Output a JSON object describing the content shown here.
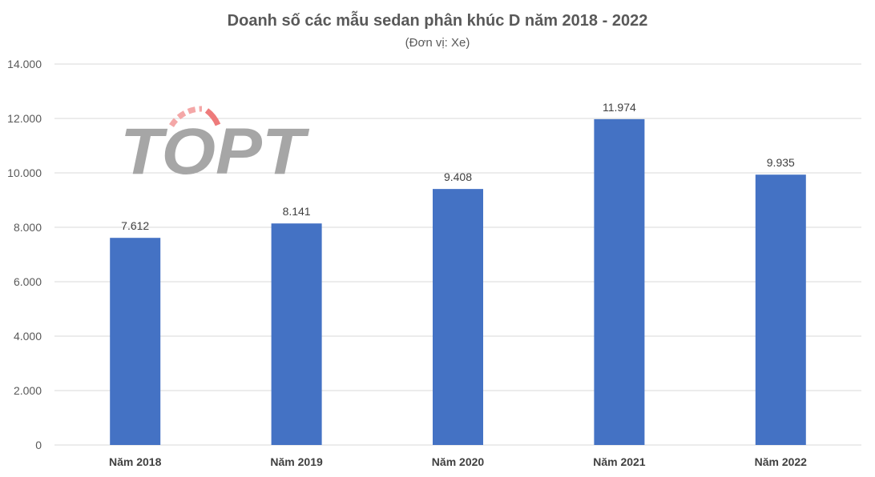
{
  "chart_data": {
    "type": "bar",
    "title": "Doanh số các mẫu sedan phân khúc D năm 2018 - 2022",
    "subtitle": "(Đơn vị: Xe)",
    "categories": [
      "Năm 2018",
      "Năm 2019",
      "Năm 2020",
      "Năm 2021",
      "Năm 2022"
    ],
    "values": [
      7612,
      8141,
      9408,
      11974,
      9935
    ],
    "value_labels": [
      "7.612",
      "8.141",
      "9.408",
      "11.974",
      "9.935"
    ],
    "yticks": [
      0,
      2000,
      4000,
      6000,
      8000,
      10000,
      12000,
      14000
    ],
    "ytick_labels": [
      "0",
      "2.000",
      "4.000",
      "6.000",
      "8.000",
      "10.000",
      "12.000",
      "14.000"
    ],
    "ylim": [
      0,
      14000
    ],
    "grid": true,
    "legend": "none",
    "bar_color": "#4472c4"
  },
  "watermark": {
    "text": "TOPT",
    "accent_color": "#f4a7a7"
  }
}
